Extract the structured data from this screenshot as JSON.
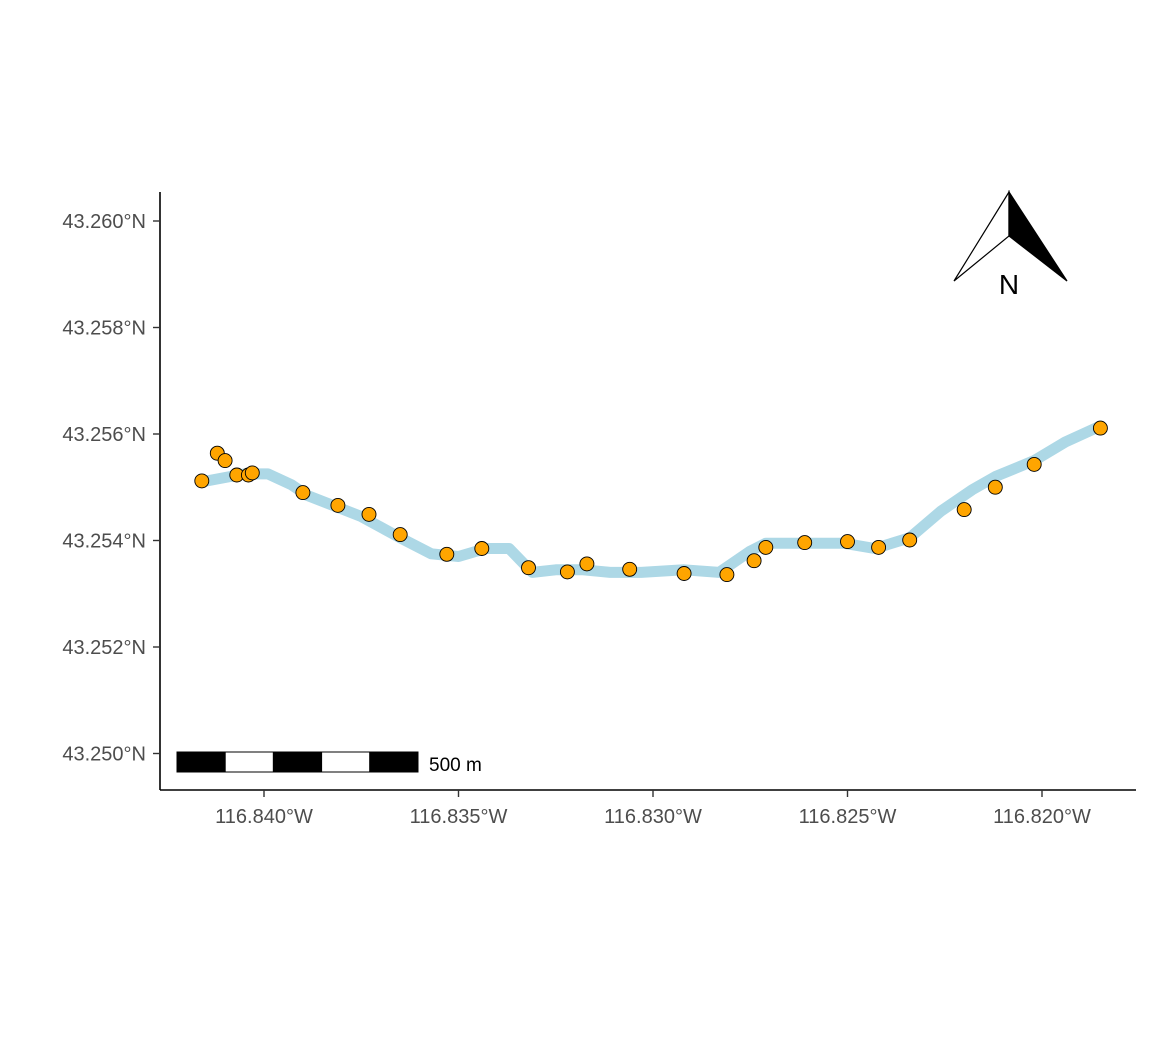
{
  "colors": {
    "background": "#ffffff",
    "track": "#add8e6",
    "points_fill": "#ffa500",
    "points_stroke": "#000000",
    "axis": "#000000",
    "tick_text": "#4d4d4d"
  },
  "map": {
    "projection": "geographic",
    "grid": false,
    "xlim": [
      -116.8425,
      -116.8175
    ],
    "ylim": [
      43.2495,
      43.2605
    ]
  },
  "axes": {
    "x_ticks": [
      {
        "value": -116.84,
        "label": "116.840°W"
      },
      {
        "value": -116.835,
        "label": "116.835°W"
      },
      {
        "value": -116.83,
        "label": "116.830°W"
      },
      {
        "value": -116.825,
        "label": "116.825°W"
      },
      {
        "value": -116.82,
        "label": "116.820°W"
      }
    ],
    "y_ticks": [
      {
        "value": 43.25,
        "label": "43.250°N"
      },
      {
        "value": 43.252,
        "label": "43.252°N"
      },
      {
        "value": 43.254,
        "label": "43.254°N"
      },
      {
        "value": 43.256,
        "label": "43.256°N"
      },
      {
        "value": 43.258,
        "label": "43.258°N"
      },
      {
        "value": 43.26,
        "label": "43.260°N"
      }
    ]
  },
  "scale_bar": {
    "label": "500 m",
    "segments": 5,
    "position": "bottom-left"
  },
  "north_arrow": {
    "label": "N",
    "position": "top-right"
  },
  "chart_data": {
    "type": "map",
    "track": {
      "lon": [
        -116.8416,
        -116.8405,
        -116.8399,
        -116.8393,
        -116.8389,
        -116.8375,
        -116.8365,
        -116.8357,
        -116.835,
        -116.8343,
        -116.8337,
        -116.8333,
        -116.8331,
        -116.8325,
        -116.8318,
        -116.8311,
        -116.8303,
        -116.8292,
        -116.8283,
        -116.8275,
        -116.8271,
        -116.8261,
        -116.8251,
        -116.8243,
        -116.8234,
        -116.8226,
        -116.8218,
        -116.8212,
        -116.8202,
        -116.8194,
        -116.8185
      ],
      "lat": [
        43.2551,
        43.25525,
        43.25525,
        43.25505,
        43.25485,
        43.25445,
        43.25405,
        43.25375,
        43.2537,
        43.25385,
        43.25385,
        43.25355,
        43.2534,
        43.25345,
        43.25345,
        43.2534,
        43.2534,
        43.25345,
        43.2534,
        43.2538,
        43.25395,
        43.25395,
        43.25395,
        43.25385,
        43.25405,
        43.25455,
        43.25495,
        43.2552,
        43.2555,
        43.25585,
        43.25615
      ]
    },
    "points": {
      "lon": [
        -116.8416,
        -116.8412,
        -116.841,
        -116.8407,
        -116.8404,
        -116.8403,
        -116.839,
        -116.8381,
        -116.8373,
        -116.8365,
        -116.8353,
        -116.8344,
        -116.8332,
        -116.8322,
        -116.8317,
        -116.8306,
        -116.8292,
        -116.8281,
        -116.8274,
        -116.8271,
        -116.8261,
        -116.825,
        -116.8242,
        -116.8234,
        -116.822,
        -116.8212,
        -116.8202,
        -116.8185
      ],
      "lat": [
        43.25512,
        43.25564,
        43.2555,
        43.25523,
        43.25523,
        43.25527,
        43.2549,
        43.25466,
        43.25449,
        43.25411,
        43.25374,
        43.25385,
        43.25349,
        43.25341,
        43.25356,
        43.25346,
        43.25338,
        43.25336,
        43.25362,
        43.25387,
        43.25396,
        43.25398,
        43.25387,
        43.25401,
        43.25458,
        43.255,
        43.25543,
        43.25611
      ]
    }
  }
}
